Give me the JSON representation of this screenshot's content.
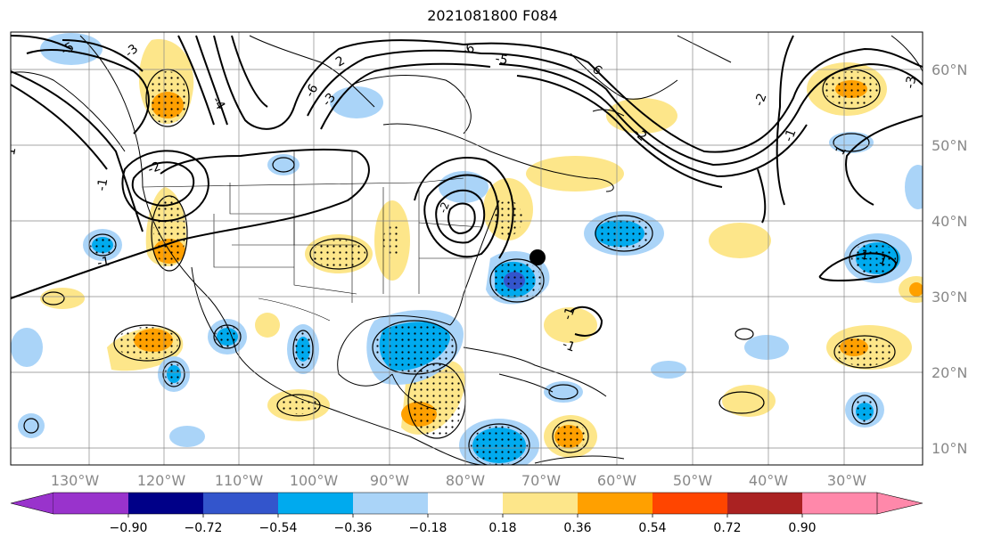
{
  "title": "2021081800 F084",
  "colors": {
    "purple": "#9933cc",
    "navy": "#000088",
    "royal": "#3355cc",
    "blue": "#00aaee",
    "lightblue": "#aad4f8",
    "white": "#ffffff",
    "yellow": "#fde68a",
    "orange": "#ffa000",
    "redorange": "#ff4500",
    "darkred": "#aa2222",
    "pink": "#ff88aa"
  },
  "longitude_labels": [
    "130°W",
    "120°W",
    "110°W",
    "100°W",
    "90°W",
    "80°W",
    "70°W",
    "60°W",
    "50°W",
    "40°W",
    "30°W"
  ],
  "latitude_labels": [
    "60°N",
    "50°N",
    "40°N",
    "30°N",
    "20°N",
    "10°N"
  ],
  "colorbar": {
    "ticks": [
      "−0.90",
      "−0.72",
      "−0.54",
      "−0.36",
      "−0.18",
      "0.18",
      "0.36",
      "0.54",
      "0.72",
      "0.90"
    ]
  },
  "contour_labels": [
    "-5",
    "-3",
    "-6",
    "-4",
    "-1",
    "-6",
    "-3",
    "-2",
    "-1",
    "1",
    "-1",
    "-1",
    "-2",
    "-3",
    "-2",
    "-6",
    "2",
    "-5",
    "1",
    "-1",
    "-1",
    "1",
    "-2"
  ],
  "marker": {
    "lon": -71,
    "lat": 35.5
  }
}
